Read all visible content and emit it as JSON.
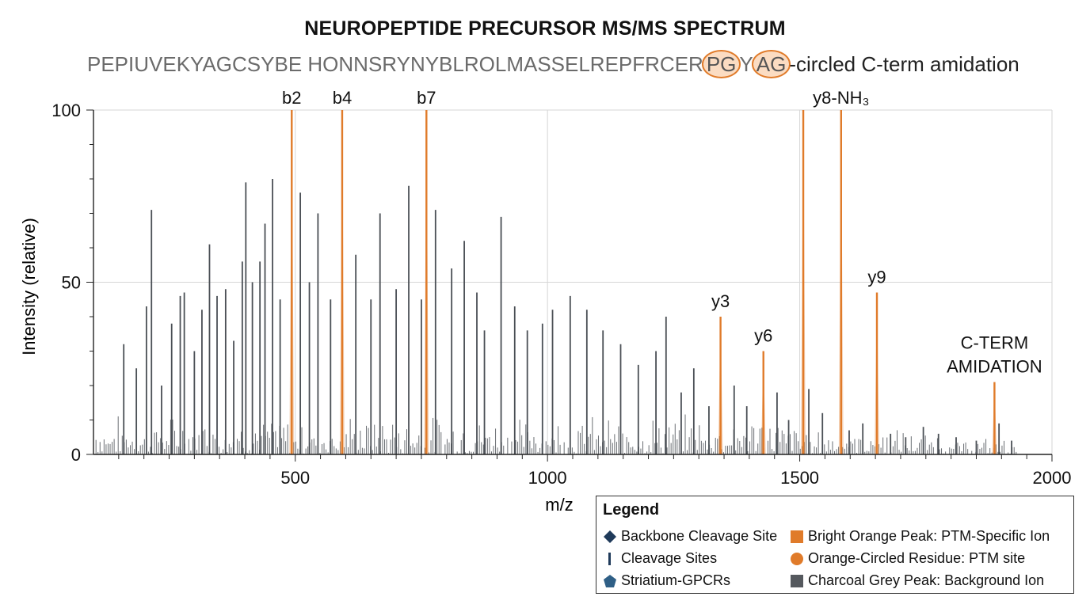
{
  "chart_data": {
    "type": "bar",
    "title": "NEUROPEPTIDE PRECURSOR MS/MS SPECTRUM",
    "sequence": {
      "prefix": "PEPIUVEKYAGCSYBE HONNSRYNYBLROLMASSELREPFRCER",
      "circled": [
        "PG",
        "AG"
      ],
      "middle": "Y",
      "suffix": "-circled C-term amidation"
    },
    "xlabel": "m/z",
    "ylabel": "Intensity (relative)",
    "xlim": [
      100,
      2000
    ],
    "ylim": [
      0,
      100
    ],
    "xticks": [
      500,
      1000,
      1500,
      2000
    ],
    "yticks": [
      0,
      50,
      100
    ],
    "colors": {
      "ptm": "#e07b2a",
      "background": "#4a4f55",
      "grid": "#d6d6d6"
    },
    "ptm_peaks": [
      {
        "label": "b2",
        "x": 493,
        "y": 100
      },
      {
        "label": "b4",
        "x": 593,
        "y": 100
      },
      {
        "label": "b7",
        "x": 760,
        "y": 100
      },
      {
        "label": "y3",
        "x": 1343,
        "y": 40
      },
      {
        "label": "y6",
        "x": 1428,
        "y": 30
      },
      {
        "label": "",
        "x": 1507,
        "y": 100
      },
      {
        "label": "y8-NH₃",
        "x": 1582,
        "y": 100
      },
      {
        "label": "y9",
        "x": 1653,
        "y": 47
      },
      {
        "label": "C-TERM\nAMIDATION",
        "x": 1886,
        "y": 21
      }
    ],
    "background_peaks": [
      {
        "x": 160,
        "y": 32
      },
      {
        "x": 185,
        "y": 25
      },
      {
        "x": 205,
        "y": 43
      },
      {
        "x": 215,
        "y": 71
      },
      {
        "x": 235,
        "y": 20
      },
      {
        "x": 255,
        "y": 38
      },
      {
        "x": 272,
        "y": 46
      },
      {
        "x": 280,
        "y": 47
      },
      {
        "x": 300,
        "y": 30
      },
      {
        "x": 315,
        "y": 42
      },
      {
        "x": 330,
        "y": 61
      },
      {
        "x": 345,
        "y": 46
      },
      {
        "x": 362,
        "y": 48
      },
      {
        "x": 378,
        "y": 33
      },
      {
        "x": 395,
        "y": 56
      },
      {
        "x": 402,
        "y": 79
      },
      {
        "x": 415,
        "y": 50
      },
      {
        "x": 430,
        "y": 56
      },
      {
        "x": 440,
        "y": 67
      },
      {
        "x": 455,
        "y": 80
      },
      {
        "x": 470,
        "y": 45
      },
      {
        "x": 510,
        "y": 76
      },
      {
        "x": 528,
        "y": 50
      },
      {
        "x": 545,
        "y": 70
      },
      {
        "x": 570,
        "y": 45
      },
      {
        "x": 620,
        "y": 58
      },
      {
        "x": 650,
        "y": 45
      },
      {
        "x": 668,
        "y": 70
      },
      {
        "x": 700,
        "y": 48
      },
      {
        "x": 725,
        "y": 78
      },
      {
        "x": 750,
        "y": 45
      },
      {
        "x": 778,
        "y": 71
      },
      {
        "x": 810,
        "y": 54
      },
      {
        "x": 835,
        "y": 62
      },
      {
        "x": 860,
        "y": 47
      },
      {
        "x": 875,
        "y": 36
      },
      {
        "x": 908,
        "y": 69
      },
      {
        "x": 935,
        "y": 43
      },
      {
        "x": 960,
        "y": 36
      },
      {
        "x": 990,
        "y": 38
      },
      {
        "x": 1010,
        "y": 42
      },
      {
        "x": 1045,
        "y": 46
      },
      {
        "x": 1078,
        "y": 42
      },
      {
        "x": 1110,
        "y": 36
      },
      {
        "x": 1145,
        "y": 32
      },
      {
        "x": 1180,
        "y": 26
      },
      {
        "x": 1215,
        "y": 30
      },
      {
        "x": 1235,
        "y": 40
      },
      {
        "x": 1265,
        "y": 18
      },
      {
        "x": 1290,
        "y": 25
      },
      {
        "x": 1320,
        "y": 14
      },
      {
        "x": 1370,
        "y": 20
      },
      {
        "x": 1395,
        "y": 14
      },
      {
        "x": 1455,
        "y": 18
      },
      {
        "x": 1478,
        "y": 10
      },
      {
        "x": 1518,
        "y": 19
      },
      {
        "x": 1545,
        "y": 12
      },
      {
        "x": 1598,
        "y": 7
      },
      {
        "x": 1625,
        "y": 9
      },
      {
        "x": 1680,
        "y": 6
      },
      {
        "x": 1710,
        "y": 5
      },
      {
        "x": 1745,
        "y": 8
      },
      {
        "x": 1775,
        "y": 6
      },
      {
        "x": 1810,
        "y": 5
      },
      {
        "x": 1850,
        "y": 4
      },
      {
        "x": 1895,
        "y": 9
      },
      {
        "x": 1920,
        "y": 4
      }
    ],
    "legend": {
      "title": "Legend",
      "items": [
        {
          "label": "Backbone Cleavage Site",
          "symbol": "diamond-icon",
          "color": "#1f3a5a"
        },
        {
          "label": "Bright Orange Peak: PTM-Specific Ion",
          "symbol": "square-icon",
          "color": "#e07b2a"
        },
        {
          "label": "Cleavage Sites",
          "symbol": "bar-icon",
          "color": "#1f3a5a"
        },
        {
          "label": "Orange-Circled Residue: PTM site",
          "symbol": "circle-icon",
          "color": "#e07b2a"
        },
        {
          "label": "Striatium-GPCRs",
          "symbol": "pentagon-icon",
          "color": "#2f5f86"
        },
        {
          "label": "Charcoal Grey Peak: Background Ion",
          "symbol": "square-icon",
          "color": "#55595e"
        }
      ]
    }
  }
}
